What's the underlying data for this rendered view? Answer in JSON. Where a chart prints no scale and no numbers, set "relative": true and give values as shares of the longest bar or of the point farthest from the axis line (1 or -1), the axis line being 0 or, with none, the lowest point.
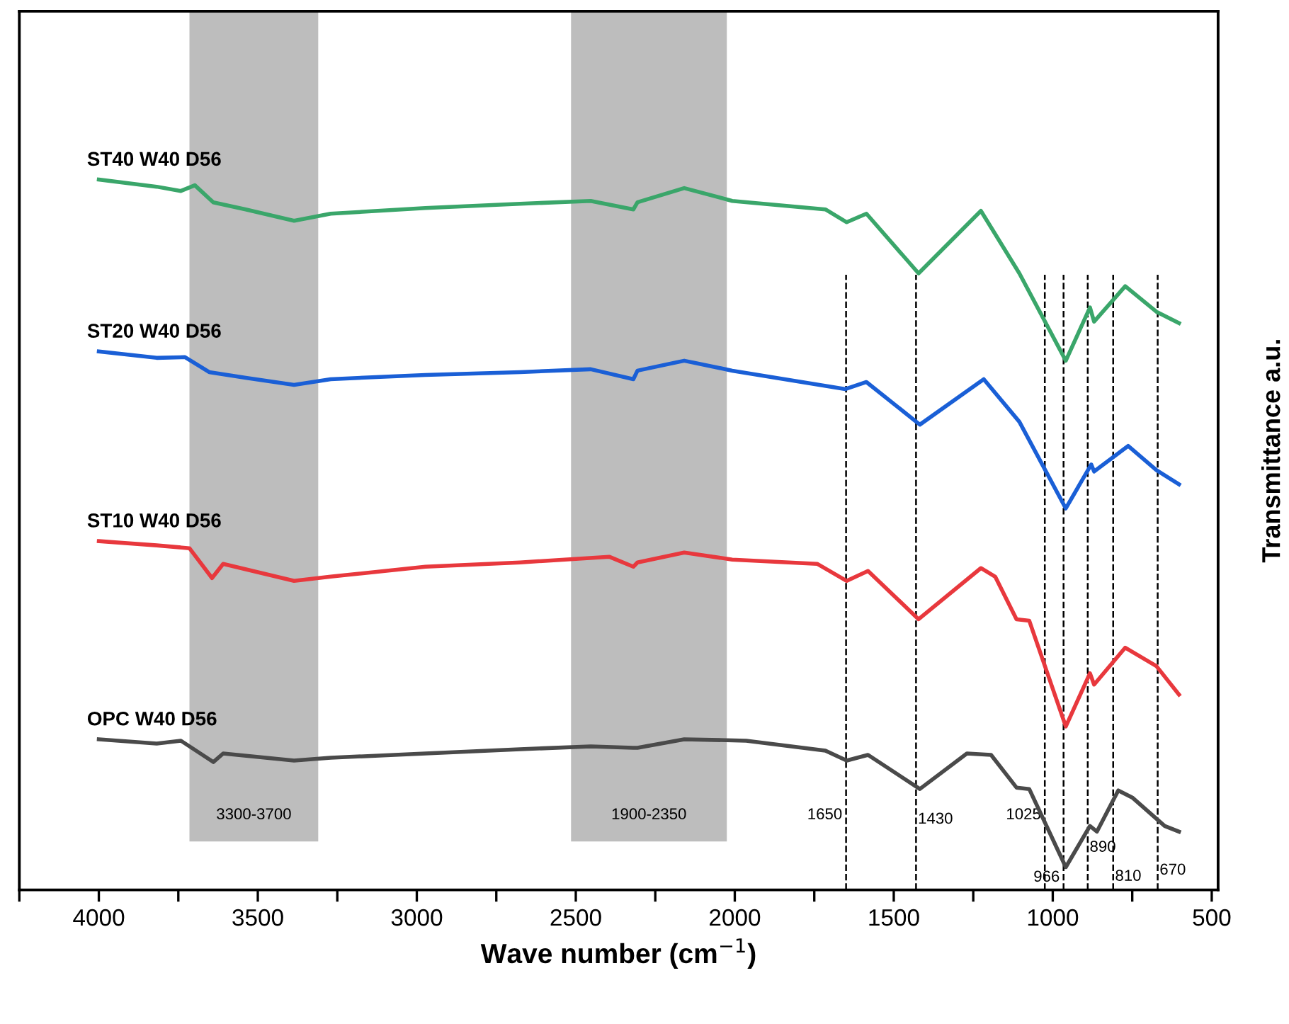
{
  "chart_data": {
    "type": "line",
    "relative": true,
    "xlabel": "Wave number (cm$^{−1}$)",
    "ylabel": "Transmittance a.u.",
    "xlim": [
      4250,
      480
    ],
    "xticks": [
      {
        "value": 4250,
        "label": null
      },
      4000,
      {
        "value": 3750,
        "label": null
      },
      3500,
      {
        "value": 3250,
        "label": null
      },
      3000,
      {
        "value": 2750,
        "label": null
      },
      2500,
      {
        "value": 2250,
        "label": null
      },
      2000,
      {
        "value": 1750,
        "label": null
      },
      1500,
      {
        "value": 1250,
        "label": null
      },
      1000,
      {
        "value": 750,
        "label": null
      },
      500
    ],
    "grid": false,
    "legend": false,
    "line_style": "solid",
    "marker": "none",
    "series": [
      {
        "name": "ST40 W40 D56",
        "color": "#3aa66a",
        "x": [
          4000,
          3818,
          3742,
          3698,
          3640,
          3538,
          3386,
          3271,
          2973,
          2675,
          2453,
          2319,
          2306,
          2159,
          2008,
          1715,
          1648,
          1586,
          1422,
          1226,
          1105,
          959,
          883,
          870,
          772,
          674,
          603
        ],
        "values": [
          1.0,
          0.99,
          0.984,
          0.992,
          0.968,
          0.958,
          0.942,
          0.952,
          0.96,
          0.966,
          0.97,
          0.958,
          0.968,
          0.988,
          0.97,
          0.958,
          0.94,
          0.952,
          0.868,
          0.956,
          0.868,
          0.745,
          0.82,
          0.8,
          0.85,
          0.814,
          0.798
        ]
      },
      {
        "name": "ST20 W40 D56",
        "color": "#1a5fd6",
        "x": [
          4000,
          3818,
          3729,
          3653,
          3538,
          3386,
          3271,
          2973,
          2675,
          2453,
          2319,
          2306,
          2159,
          2008,
          1652,
          1586,
          1418,
          1217,
          1105,
          959,
          879,
          870,
          763,
          674,
          603
        ],
        "values": [
          0.758,
          0.749,
          0.75,
          0.729,
          0.721,
          0.711,
          0.719,
          0.725,
          0.729,
          0.733,
          0.719,
          0.731,
          0.745,
          0.731,
          0.705,
          0.715,
          0.655,
          0.719,
          0.659,
          0.537,
          0.599,
          0.589,
          0.625,
          0.591,
          0.571
        ]
      },
      {
        "name": "ST10 W40 D56",
        "color": "#e8383d",
        "x": [
          4000,
          3818,
          3715,
          3644,
          3609,
          3386,
          3271,
          2973,
          2675,
          2395,
          2319,
          2306,
          2159,
          2008,
          1741,
          1648,
          1581,
          1422,
          1226,
          1181,
          1114,
          1074,
          959,
          883,
          870,
          772,
          674,
          603
        ],
        "values": [
          0.491,
          0.485,
          0.481,
          0.439,
          0.459,
          0.435,
          0.441,
          0.455,
          0.461,
          0.469,
          0.455,
          0.461,
          0.475,
          0.465,
          0.459,
          0.435,
          0.449,
          0.381,
          0.453,
          0.441,
          0.381,
          0.379,
          0.23,
          0.305,
          0.289,
          0.341,
          0.315,
          0.275
        ]
      },
      {
        "name": "OPC W40 D56",
        "color": "#4a4a4a",
        "x": [
          4000,
          3818,
          3742,
          3640,
          3609,
          3386,
          3271,
          2973,
          2675,
          2453,
          2319,
          2306,
          2159,
          1964,
          1715,
          1648,
          1581,
          1418,
          1270,
          1194,
          1114,
          1074,
          959,
          883,
          861,
          794,
          750,
          648,
          603
        ],
        "values": [
          0.212,
          0.206,
          0.21,
          0.18,
          0.192,
          0.182,
          0.186,
          0.192,
          0.198,
          0.202,
          0.2,
          0.2,
          0.212,
          0.21,
          0.196,
          0.182,
          0.19,
          0.142,
          0.192,
          0.19,
          0.144,
          0.142,
          0.032,
          0.09,
          0.082,
          0.14,
          0.13,
          0.09,
          0.082
        ]
      }
    ],
    "bands": [
      {
        "axis": "x",
        "from": 3715,
        "to": 3310,
        "label": "3300-3700",
        "color": "#bdbdbd"
      },
      {
        "axis": "x",
        "from": 2515,
        "to": 2025,
        "label": "1900-2350",
        "color": "#bdbdbd"
      }
    ],
    "ref_lines": [
      {
        "axis": "x",
        "value": 1650,
        "label": "1650",
        "color": "#000000",
        "line_style": "dashed"
      },
      {
        "axis": "x",
        "value": 1430,
        "label": "1430",
        "color": "#000000",
        "line_style": "dashed"
      },
      {
        "axis": "x",
        "value": 1025,
        "label": "1025",
        "color": "#000000",
        "line_style": "dashed"
      },
      {
        "axis": "x",
        "value": 966,
        "label": "966",
        "color": "#000000",
        "line_style": "dashed"
      },
      {
        "axis": "x",
        "value": 890,
        "label": "890",
        "color": "#000000",
        "line_style": "dashed"
      },
      {
        "axis": "x",
        "value": 810,
        "label": "810",
        "color": "#000000",
        "line_style": "dashed"
      },
      {
        "axis": "x",
        "value": 670,
        "label": "670",
        "color": "#000000",
        "line_style": "dashed"
      }
    ]
  }
}
